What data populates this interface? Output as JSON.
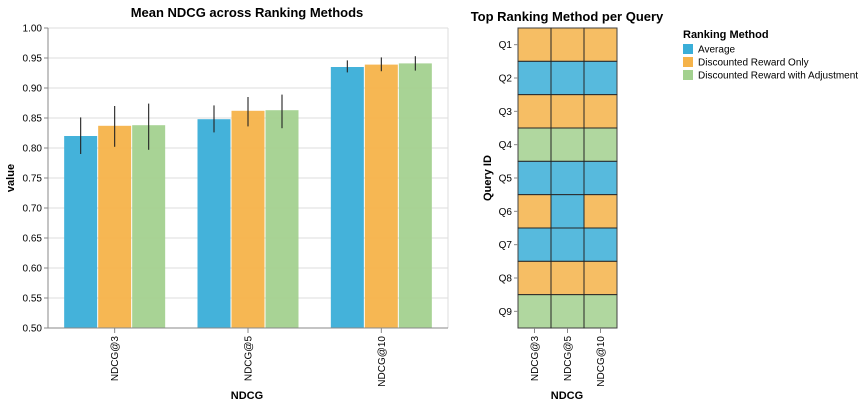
{
  "colors": {
    "Average": "#3aaed8",
    "Discounted Reward Only": "#f5b34a",
    "Discounted Reward with Adjustment": "#a3d18f",
    "grid": "#dddddd",
    "axis": "#888888",
    "cell_border": "#222222"
  },
  "chart_data": [
    {
      "type": "bar",
      "title": "Mean NDCG across Ranking Methods",
      "xlabel": "NDCG",
      "ylabel": "value",
      "ylim": [
        0.5,
        1.0
      ],
      "yticks": [
        "0.50",
        "0.55",
        "0.60",
        "0.65",
        "0.70",
        "0.75",
        "0.80",
        "0.85",
        "0.90",
        "0.95",
        "1.00"
      ],
      "categories": [
        "NDCG@3",
        "NDCG@5",
        "NDCG@10"
      ],
      "grid": true,
      "series": [
        {
          "name": "Average",
          "values": [
            0.82,
            0.848,
            0.935
          ],
          "err_low": [
            0.79,
            0.826,
            0.926
          ],
          "err_high": [
            0.851,
            0.871,
            0.946
          ]
        },
        {
          "name": "Discounted Reward Only",
          "values": [
            0.837,
            0.862,
            0.939
          ],
          "err_low": [
            0.802,
            0.836,
            0.928
          ],
          "err_high": [
            0.87,
            0.885,
            0.951
          ]
        },
        {
          "name": "Discounted Reward with Adjustment",
          "values": [
            0.838,
            0.863,
            0.941
          ],
          "err_low": [
            0.797,
            0.833,
            0.929
          ],
          "err_high": [
            0.874,
            0.889,
            0.953
          ]
        }
      ]
    },
    {
      "type": "heatmap",
      "title": "Top Ranking Method per Query",
      "xlabel": "NDCG",
      "ylabel": "Query ID",
      "x": [
        "NDCG@3",
        "NDCG@5",
        "NDCG@10"
      ],
      "y": [
        "Q1",
        "Q2",
        "Q3",
        "Q4",
        "Q5",
        "Q6",
        "Q7",
        "Q8",
        "Q9"
      ],
      "values": [
        [
          "Discounted Reward Only",
          "Discounted Reward Only",
          "Discounted Reward Only"
        ],
        [
          "Average",
          "Average",
          "Average"
        ],
        [
          "Discounted Reward Only",
          "Discounted Reward Only",
          "Discounted Reward Only"
        ],
        [
          "Discounted Reward with Adjustment",
          "Discounted Reward with Adjustment",
          "Discounted Reward with Adjustment"
        ],
        [
          "Average",
          "Average",
          "Average"
        ],
        [
          "Discounted Reward Only",
          "Average",
          "Discounted Reward Only"
        ],
        [
          "Average",
          "Average",
          "Average"
        ],
        [
          "Discounted Reward Only",
          "Discounted Reward Only",
          "Discounted Reward Only"
        ],
        [
          "Discounted Reward with Adjustment",
          "Discounted Reward with Adjustment",
          "Discounted Reward with Adjustment"
        ]
      ]
    }
  ],
  "legend": {
    "title": "Ranking Method",
    "placement": "top-right",
    "items": [
      "Average",
      "Discounted Reward Only",
      "Discounted Reward with Adjustment"
    ]
  }
}
